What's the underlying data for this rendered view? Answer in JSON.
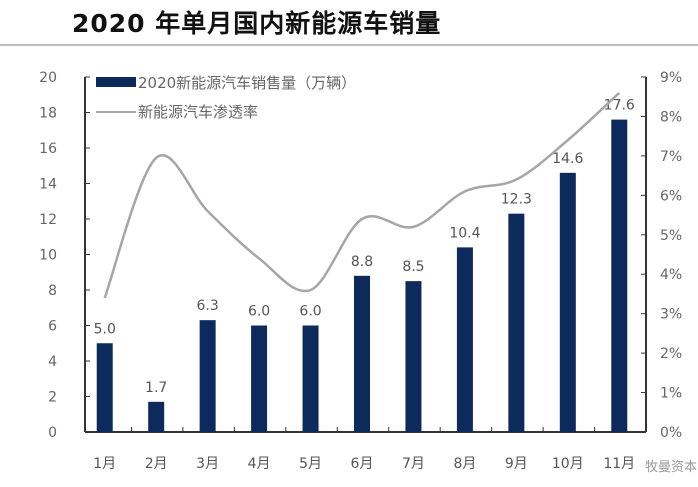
{
  "title": "2020 年单月国内新能源车销量",
  "watermark": "牧曼资本",
  "chart_data": {
    "type": "bar",
    "title": "2020 年单月国内新能源车销量",
    "categories": [
      "1月",
      "2月",
      "3月",
      "4月",
      "5月",
      "6月",
      "7月",
      "8月",
      "9月",
      "10月",
      "11月"
    ],
    "series": [
      {
        "name": "2020新能源汽车销售量（万辆）",
        "type": "bar",
        "axis": "left",
        "color": "#0d2a5c",
        "values": [
          5.0,
          1.7,
          6.3,
          6.0,
          6.0,
          8.8,
          8.5,
          10.4,
          12.3,
          14.6,
          17.6
        ],
        "labels": [
          "5.0",
          "1.7",
          "6.3",
          "6.0",
          "6.0",
          "8.8",
          "8.5",
          "10.4",
          "12.3",
          "14.6",
          "17.6"
        ]
      },
      {
        "name": "新能源汽车渗透率",
        "type": "line",
        "axis": "right",
        "color": "#a6a6a6",
        "values": [
          3.4,
          6.95,
          5.6,
          4.4,
          3.6,
          5.4,
          5.2,
          6.1,
          6.4,
          7.4,
          8.6
        ]
      }
    ],
    "y_left": {
      "min": 0,
      "max": 20,
      "ticks": [
        "0",
        "2",
        "4",
        "6",
        "8",
        "10",
        "12",
        "14",
        "16",
        "18",
        "20"
      ]
    },
    "y_right": {
      "min": 0,
      "max": 9,
      "ticks": [
        "0%",
        "1%",
        "2%",
        "3%",
        "4%",
        "5%",
        "6%",
        "7%",
        "8%",
        "9%"
      ]
    },
    "legend": "top-left",
    "grid": false
  }
}
